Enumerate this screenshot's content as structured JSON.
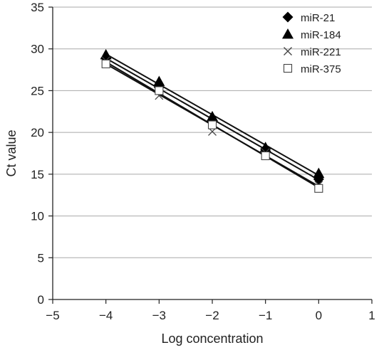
{
  "chart_data": {
    "type": "scatter",
    "title": "",
    "xlabel": "Log concentration",
    "ylabel": "Ct value",
    "xlim": [
      -5,
      1
    ],
    "ylim": [
      0,
      35
    ],
    "x_ticks": [
      "−5",
      "−4",
      "−3",
      "−2",
      "−1",
      "0",
      "1"
    ],
    "y_ticks": [
      "0",
      "5",
      "10",
      "15",
      "20",
      "25",
      "30",
      "35"
    ],
    "grid": "horizontal",
    "legend_position": "top-right",
    "trendlines": true,
    "series": [
      {
        "name": "miR-21",
        "marker": "diamond",
        "x": [
          -4,
          -3,
          -2,
          -1,
          0
        ],
        "y": [
          28.9,
          25.4,
          21.3,
          18.0,
          14.4
        ]
      },
      {
        "name": "miR-184",
        "marker": "triangle",
        "x": [
          -4,
          -3,
          -2,
          -1,
          0
        ],
        "y": [
          29.3,
          26.1,
          21.9,
          18.2,
          15.1
        ]
      },
      {
        "name": "miR-221",
        "marker": "cross",
        "x": [
          -4,
          -3,
          -2,
          -1,
          0
        ],
        "y": [
          28.6,
          24.4,
          20.1,
          17.6,
          13.7
        ]
      },
      {
        "name": "miR-375",
        "marker": "open-square",
        "x": [
          -4,
          -3,
          -2,
          -1,
          0
        ],
        "y": [
          28.2,
          25.0,
          20.9,
          17.2,
          13.3
        ]
      }
    ]
  }
}
